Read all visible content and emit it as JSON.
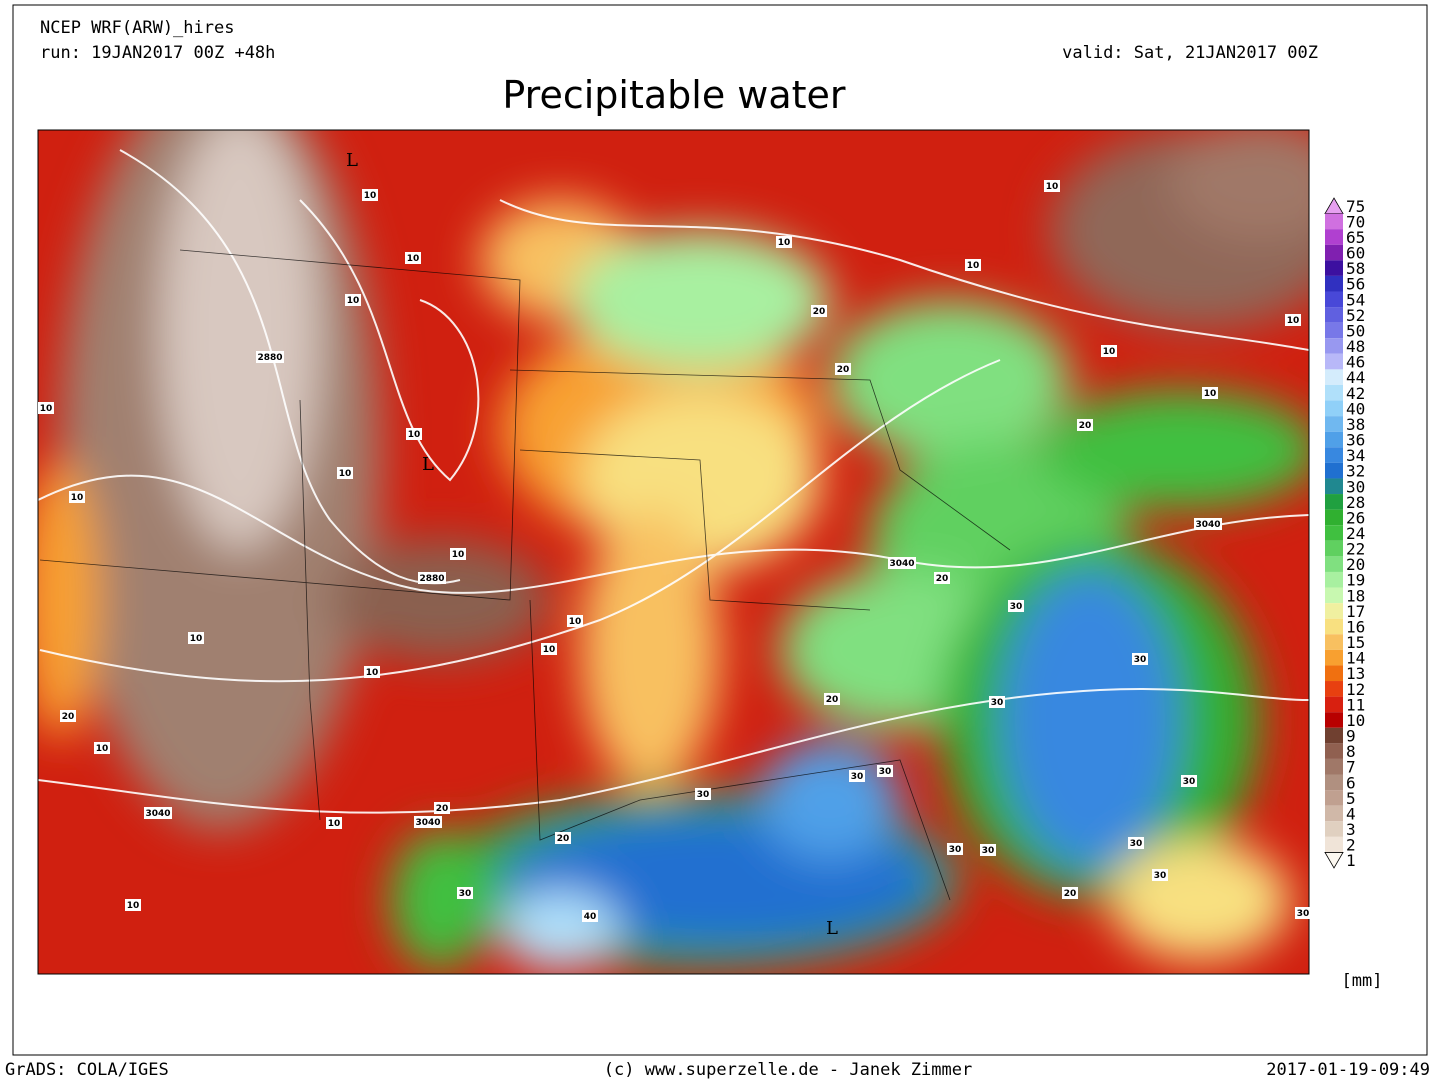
{
  "header": {
    "model": "NCEP WRF(ARW)_hires",
    "run": "run: 19JAN2017 00Z +48h",
    "valid": "valid: Sat, 21JAN2017 00Z",
    "title": "Precipitable water"
  },
  "map_labels": [
    "L",
    "L",
    "L",
    "10",
    "10",
    "10",
    "10",
    "10",
    "10",
    "10",
    "10",
    "10",
    "10",
    "10",
    "10",
    "10",
    "10",
    "10",
    "10",
    "10",
    "10",
    "10",
    "10",
    "10",
    "20",
    "20",
    "20",
    "20",
    "20",
    "20",
    "20",
    "20",
    "20",
    "30",
    "30",
    "30",
    "30",
    "30",
    "30",
    "30",
    "30",
    "30",
    "30",
    "30",
    "30",
    "30",
    "40",
    "2880",
    "2880",
    "3040",
    "3040",
    "3040",
    "3040"
  ],
  "colorbar": {
    "labels": [
      "75",
      "70",
      "65",
      "60",
      "58",
      "56",
      "54",
      "52",
      "50",
      "48",
      "46",
      "44",
      "42",
      "40",
      "38",
      "36",
      "34",
      "32",
      "30",
      "28",
      "26",
      "24",
      "22",
      "20",
      "19",
      "18",
      "17",
      "16",
      "15",
      "14",
      "13",
      "12",
      "11",
      "10",
      "9",
      "8",
      "7",
      "6",
      "5",
      "4",
      "3",
      "2",
      "1"
    ],
    "colors": [
      "#e6a0f0",
      "#d070e0",
      "#b040d0",
      "#8020b0",
      "#3c10a0",
      "#3030c0",
      "#4848d8",
      "#6060e0",
      "#7878e8",
      "#9898f0",
      "#b8b8f8",
      "#d4ecfc",
      "#b0e0fa",
      "#90d0f8",
      "#70b8f0",
      "#50a0e8",
      "#3888e0",
      "#2070d0",
      "#208890",
      "#20a040",
      "#30b030",
      "#40c040",
      "#60d060",
      "#80e080",
      "#a8f0a0",
      "#c8f8b0",
      "#f0f0a0",
      "#f8e080",
      "#f8c060",
      "#f8a030",
      "#f07010",
      "#e84010",
      "#d82010",
      "#b80000",
      "#704030",
      "#906050",
      "#a07868",
      "#b09080",
      "#c0a090",
      "#d0b8a8",
      "#e0d0c0",
      "#f0e4d8",
      "#fcf8f0"
    ],
    "unit": "[mm]"
  },
  "footer": {
    "left": "GrADS: COLA/IGES",
    "center": "(c) www.superzelle.de - Janek Zimmer",
    "right": "2017-01-19-09:49"
  }
}
